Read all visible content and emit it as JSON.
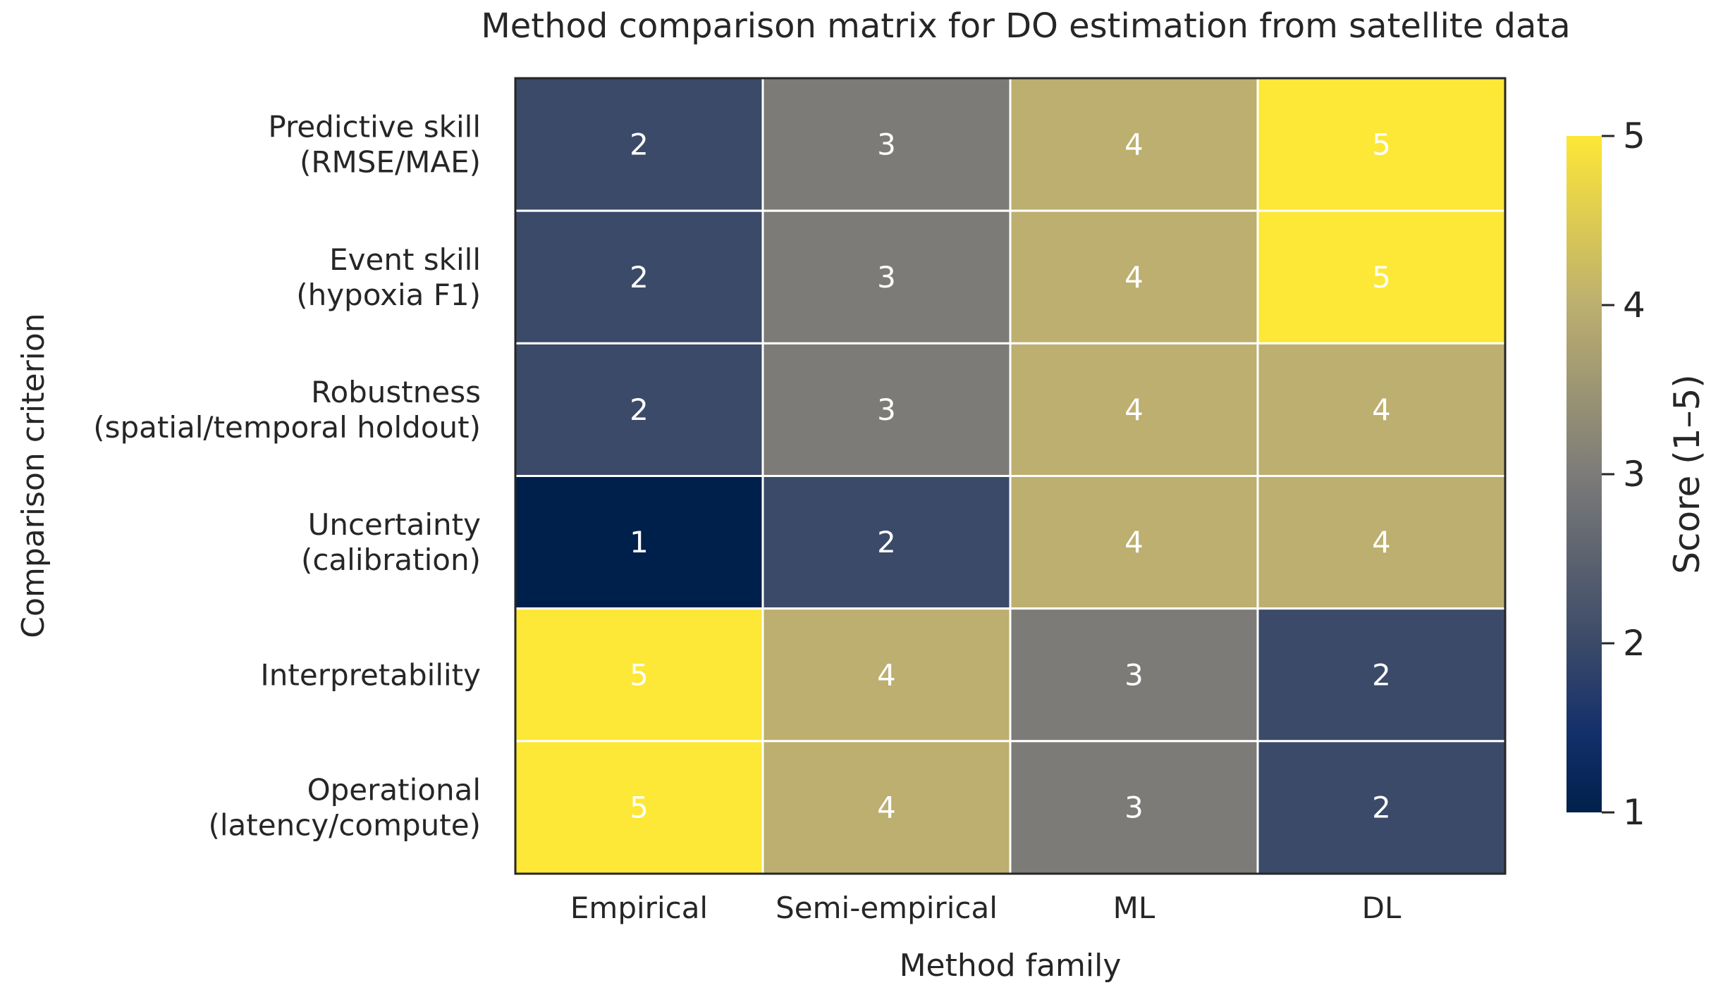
{
  "chart_data": {
    "type": "heatmap",
    "title": "Method comparison matrix for DO estimation from satellite data",
    "xlabel": "Method family",
    "ylabel": "Comparison criterion",
    "columns": [
      "Empirical",
      "Semi-empirical",
      "ML",
      "DL"
    ],
    "rows": [
      {
        "label": [
          "Predictive skill",
          "(RMSE/MAE)"
        ],
        "values": [
          2,
          3,
          4,
          5
        ]
      },
      {
        "label": [
          "Event skill",
          "(hypoxia F1)"
        ],
        "values": [
          2,
          3,
          4,
          5
        ]
      },
      {
        "label": [
          "Robustness",
          "(spatial/temporal holdout)"
        ],
        "values": [
          2,
          3,
          4,
          4
        ]
      },
      {
        "label": [
          "Uncertainty",
          "(calibration)"
        ],
        "values": [
          1,
          2,
          4,
          4
        ]
      },
      {
        "label": [
          "Interpretability"
        ],
        "values": [
          5,
          4,
          3,
          2
        ]
      },
      {
        "label": [
          "Operational",
          "(latency/compute)"
        ],
        "values": [
          5,
          4,
          3,
          2
        ]
      }
    ],
    "colorbar": {
      "label": "Score (1–5)",
      "min": 1,
      "max": 5,
      "ticks": [
        "1",
        "2",
        "3",
        "4",
        "5"
      ],
      "colormap": "cividis"
    },
    "score_colors": {
      "1": "#00204c",
      "2": "#3b4a68",
      "3": "#7c7b78",
      "4": "#bcaf6f",
      "5": "#fde737"
    }
  }
}
